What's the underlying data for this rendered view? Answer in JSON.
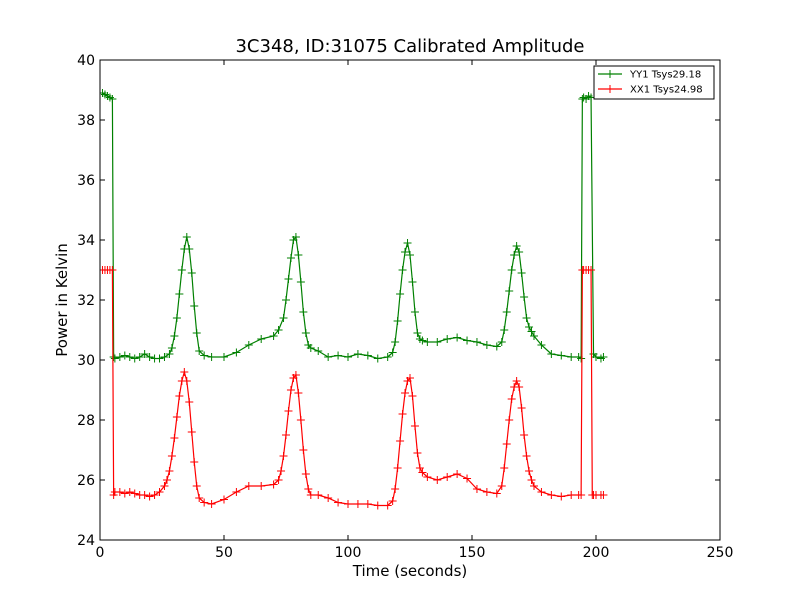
{
  "chart_data": {
    "type": "line",
    "title": "3C348, ID:31075 Calibrated Amplitude",
    "xlabel": "Time (seconds)",
    "ylabel": "Power in Kelvin",
    "xlim": [
      0,
      250
    ],
    "ylim": [
      24,
      40
    ],
    "xticks": [
      0,
      50,
      100,
      150,
      200,
      250
    ],
    "yticks": [
      24,
      26,
      28,
      30,
      32,
      34,
      36,
      38,
      40
    ],
    "grid": false,
    "legend_position": "top-right",
    "marker": "+",
    "series": [
      {
        "name": "YY1 Tsys29.18",
        "color": "#008000",
        "x": [
          1,
          2,
          3,
          4,
          5,
          5.5,
          6,
          8,
          10,
          12,
          14,
          16,
          18,
          20,
          22,
          24,
          26,
          28,
          29,
          30,
          31,
          32,
          33,
          34,
          35,
          36,
          37,
          38,
          39,
          40,
          42,
          45,
          50,
          55,
          60,
          65,
          70,
          72,
          74,
          75,
          76,
          77,
          78,
          79,
          80,
          81,
          82,
          83,
          84,
          85,
          88,
          92,
          96,
          100,
          104,
          108,
          112,
          116,
          118,
          119,
          120,
          121,
          122,
          123,
          124,
          125,
          126,
          127,
          128,
          129,
          130,
          132,
          136,
          140,
          144,
          148,
          152,
          156,
          160,
          162,
          163,
          164,
          165,
          166,
          167,
          168,
          169,
          170,
          171,
          172,
          173,
          174,
          175,
          178,
          182,
          186,
          190,
          193,
          194,
          194.5,
          195,
          196,
          197,
          198,
          199,
          200,
          202,
          203
        ],
        "y": [
          38.9,
          38.85,
          38.8,
          38.75,
          38.7,
          30.1,
          30.05,
          30.1,
          30.15,
          30.1,
          30.05,
          30.1,
          30.2,
          30.1,
          30.05,
          30.05,
          30.1,
          30.2,
          30.4,
          30.8,
          31.4,
          32.2,
          33.0,
          33.7,
          34.1,
          33.7,
          32.9,
          31.8,
          30.9,
          30.3,
          30.15,
          30.1,
          30.1,
          30.25,
          30.5,
          30.7,
          30.8,
          31.0,
          31.4,
          32.0,
          32.7,
          33.4,
          34.0,
          34.1,
          33.5,
          32.6,
          31.6,
          30.9,
          30.5,
          30.4,
          30.3,
          30.1,
          30.15,
          30.1,
          30.2,
          30.15,
          30.05,
          30.1,
          30.25,
          30.6,
          31.3,
          32.2,
          33.0,
          33.6,
          33.9,
          33.5,
          32.6,
          31.6,
          30.9,
          30.7,
          30.65,
          30.6,
          30.6,
          30.7,
          30.75,
          30.65,
          30.6,
          30.5,
          30.45,
          30.6,
          31.0,
          31.6,
          32.3,
          33.0,
          33.5,
          33.8,
          33.6,
          32.9,
          32.1,
          31.4,
          31.1,
          30.95,
          30.8,
          30.5,
          30.2,
          30.15,
          30.1,
          30.1,
          30.05,
          38.7,
          38.75,
          38.7,
          38.8,
          38.75,
          30.2,
          30.1,
          30.05,
          30.1
        ]
      },
      {
        "name": "XX1 Tsys24.98",
        "color": "#ff0000",
        "x": [
          1,
          2,
          3,
          4,
          5,
          5.5,
          6,
          8,
          10,
          12,
          14,
          16,
          18,
          20,
          22,
          24,
          26,
          27,
          28,
          29,
          30,
          31,
          32,
          33,
          34,
          35,
          36,
          37,
          38,
          39,
          40,
          42,
          45,
          50,
          55,
          60,
          65,
          70,
          72,
          73,
          74,
          75,
          76,
          77,
          78,
          79,
          80,
          81,
          82,
          83,
          84,
          85,
          88,
          92,
          96,
          100,
          104,
          108,
          112,
          116,
          118,
          119,
          120,
          121,
          122,
          123,
          124,
          125,
          126,
          127,
          128,
          129,
          130,
          132,
          136,
          140,
          144,
          148,
          152,
          156,
          160,
          162,
          163,
          164,
          165,
          166,
          167,
          168,
          169,
          170,
          171,
          172,
          173,
          174,
          175,
          178,
          182,
          186,
          190,
          193,
          194,
          194.5,
          195,
          196,
          197,
          198,
          198.5,
          199,
          200,
          202,
          203
        ],
        "y": [
          33.0,
          33.0,
          33.0,
          33.0,
          33.0,
          25.5,
          25.6,
          25.6,
          25.55,
          25.6,
          25.55,
          25.5,
          25.5,
          25.45,
          25.5,
          25.6,
          25.8,
          26.0,
          26.3,
          26.8,
          27.4,
          28.1,
          28.8,
          29.3,
          29.6,
          29.3,
          28.6,
          27.6,
          26.6,
          25.8,
          25.4,
          25.25,
          25.2,
          25.35,
          25.6,
          25.8,
          25.8,
          25.85,
          26.0,
          26.3,
          26.8,
          27.5,
          28.3,
          29.0,
          29.4,
          29.5,
          28.9,
          28.0,
          27.0,
          26.2,
          25.7,
          25.5,
          25.5,
          25.4,
          25.25,
          25.2,
          25.2,
          25.2,
          25.15,
          25.15,
          25.3,
          25.7,
          26.4,
          27.3,
          28.2,
          28.9,
          29.3,
          29.4,
          28.8,
          27.8,
          26.9,
          26.4,
          26.25,
          26.1,
          26.0,
          26.1,
          26.2,
          26.05,
          25.7,
          25.6,
          25.55,
          25.8,
          26.4,
          27.2,
          28.0,
          28.7,
          29.1,
          29.3,
          29.1,
          28.4,
          27.5,
          26.8,
          26.3,
          26.0,
          25.8,
          25.6,
          25.5,
          25.45,
          25.5,
          25.5,
          25.5,
          33.0,
          33.0,
          33.0,
          33.0,
          33.0,
          25.5,
          25.5,
          25.5,
          25.5,
          25.5
        ]
      }
    ]
  }
}
